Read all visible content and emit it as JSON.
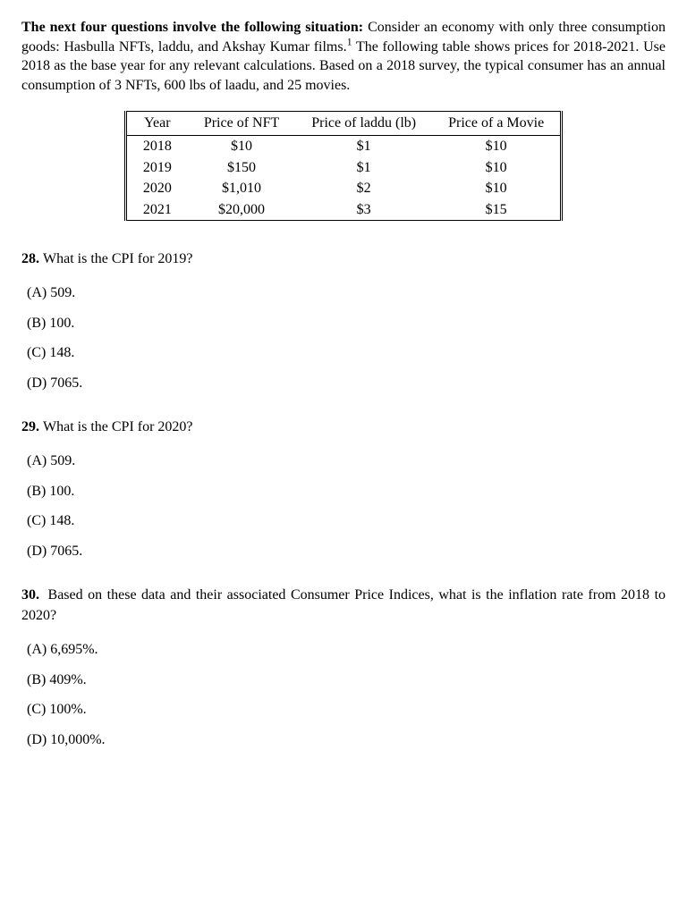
{
  "intro": {
    "bold_text": "The next four questions involve the following situation:",
    "body_part1": " Consider an economy with only three consumption goods: Hasbulla NFTs, laddu, and Akshay Kumar films.",
    "footnote_marker": "1",
    "body_part2": " The following table shows prices for 2018-2021. Use 2018 as the base year for any relevant calculations. Based on a 2018 survey, the typical consumer has an annual consumption of 3 NFTs, 600 lbs of laadu, and 25 movies."
  },
  "table": {
    "headers": [
      "Year",
      "Price of NFT",
      "Price of laddu (lb)",
      "Price of a Movie"
    ],
    "rows": [
      [
        "2018",
        "$10",
        "$1",
        "$10"
      ],
      [
        "2019",
        "$150",
        "$1",
        "$10"
      ],
      [
        "2020",
        "$1,010",
        "$2",
        "$10"
      ],
      [
        "2021",
        "$20,000",
        "$3",
        "$15"
      ]
    ]
  },
  "questions": [
    {
      "number": "28.",
      "text": "What is the CPI for 2019?",
      "options": [
        {
          "letter": "(A)",
          "text": "509."
        },
        {
          "letter": "(B)",
          "text": "100."
        },
        {
          "letter": "(C)",
          "text": "148."
        },
        {
          "letter": "(D)",
          "text": "7065."
        }
      ]
    },
    {
      "number": "29.",
      "text": "What is the CPI for 2020?",
      "options": [
        {
          "letter": "(A)",
          "text": "509."
        },
        {
          "letter": "(B)",
          "text": "100."
        },
        {
          "letter": "(C)",
          "text": "148."
        },
        {
          "letter": "(D)",
          "text": "7065."
        }
      ]
    },
    {
      "number": "30.",
      "text": "Based on these data and their associated Consumer Price Indices, what is the inflation rate from 2018 to 2020?",
      "options": [
        {
          "letter": "(A)",
          "text": "6,695%."
        },
        {
          "letter": "(B)",
          "text": "409%."
        },
        {
          "letter": "(C)",
          "text": "100%."
        },
        {
          "letter": "(D)",
          "text": "10,000%."
        }
      ]
    }
  ]
}
